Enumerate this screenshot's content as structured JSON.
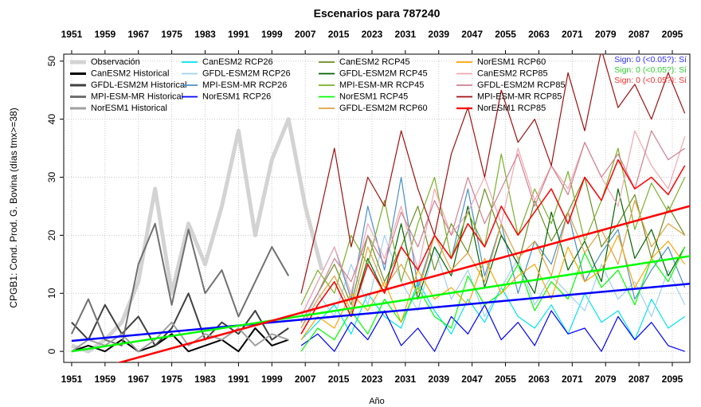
{
  "chart_data": {
    "type": "line",
    "title": "Escenarios  para 787240",
    "x_label": "Año",
    "y_label": "CPGB1: Cond. Prod. G. Bovina (días tmx>=38)",
    "xlim": [
      1949.1,
      2099.2
    ],
    "ylim": [
      -1.9,
      51.2
    ],
    "xticks": [
      1951,
      1959,
      1967,
      1975,
      1983,
      1991,
      1999,
      2007,
      2015,
      2023,
      2031,
      2039,
      2047,
      2055,
      2063,
      2071,
      2079,
      2087,
      2095
    ],
    "yticks": [
      0,
      10,
      20,
      30,
      40,
      50
    ],
    "grid": true,
    "annotations": [
      {
        "text": "Sign: 0  (<0.05?): Sí",
        "color": "#3030ff"
      },
      {
        "text": "Sign: 0  (<0.05?): Sí",
        "color": "#30d030"
      },
      {
        "text": "Sign: 0  (<0.05?): Sí",
        "color": "#ff3030"
      }
    ],
    "series": [
      {
        "name": "Observación",
        "color": "#d3d3d3",
        "width": 5,
        "x": [
          1951,
          1955,
          1959,
          1963,
          1967,
          1971,
          1975,
          1979,
          1983,
          1987,
          1991,
          1995,
          1999,
          2003,
          2007,
          2011
        ],
        "values": [
          1,
          0,
          2,
          5,
          12,
          28,
          10,
          22,
          15,
          25,
          38,
          20,
          33,
          40,
          25,
          14
        ]
      },
      {
        "name": "CanESM2 Historical",
        "color": "#000000",
        "width": 2,
        "x": [
          1951,
          1955,
          1959,
          1963,
          1967,
          1971,
          1975,
          1979,
          1983,
          1987,
          1991,
          1995,
          1999,
          2003
        ],
        "values": [
          0,
          1,
          0,
          2,
          0,
          1,
          3,
          0,
          1,
          2,
          0,
          4,
          1,
          2
        ]
      },
      {
        "name": "GFDL-ESM2M Historical",
        "color": "#404040",
        "width": 2,
        "x": [
          1951,
          1955,
          1959,
          1963,
          1967,
          1971,
          1975,
          1979,
          1983,
          1987,
          1991,
          1995,
          1999,
          2003
        ],
        "values": [
          5,
          2,
          8,
          3,
          6,
          1,
          4,
          10,
          2,
          5,
          3,
          7,
          2,
          4
        ]
      },
      {
        "name": "MPI-ESM-MR Historical",
        "color": "#707070",
        "width": 2,
        "x": [
          1951,
          1955,
          1959,
          1963,
          1967,
          1971,
          1975,
          1979,
          1983,
          1987,
          1991,
          1995,
          1999,
          2003
        ],
        "values": [
          3,
          9,
          2,
          1,
          15,
          22,
          8,
          21,
          10,
          14,
          6,
          12,
          18,
          13
        ]
      },
      {
        "name": "NorESM1 Historical",
        "color": "#a0a0a0",
        "width": 2,
        "x": [
          1951,
          1955,
          1959,
          1963,
          1967,
          1971,
          1975,
          1979,
          1983,
          1987,
          1991,
          1995,
          1999,
          2003
        ],
        "values": [
          0,
          2,
          1,
          3,
          0,
          2,
          5,
          1,
          3,
          2,
          4,
          1,
          3,
          2
        ]
      },
      {
        "name": "CanESM2 RCP26",
        "color": "#00e5ee",
        "width": 1.2,
        "x": [
          2006,
          2010,
          2014,
          2018,
          2022,
          2026,
          2030,
          2034,
          2038,
          2042,
          2046,
          2050,
          2054,
          2058,
          2062,
          2066,
          2070,
          2074,
          2078,
          2082,
          2086,
          2090,
          2094,
          2098
        ],
        "values": [
          2,
          5,
          8,
          3,
          10,
          6,
          4,
          12,
          7,
          3,
          9,
          5,
          11,
          6,
          4,
          8,
          3,
          10,
          5,
          7,
          2,
          9,
          4,
          6
        ]
      },
      {
        "name": "GFDL-ESM2M RCP26",
        "color": "#9fd0f0",
        "width": 1.2,
        "x": [
          2006,
          2010,
          2014,
          2018,
          2022,
          2026,
          2030,
          2034,
          2038,
          2042,
          2046,
          2050,
          2054,
          2058,
          2062,
          2066,
          2070,
          2074,
          2078,
          2082,
          2086,
          2090,
          2094,
          2098
        ],
        "values": [
          4,
          10,
          6,
          15,
          8,
          20,
          12,
          7,
          18,
          9,
          14,
          6,
          11,
          16,
          8,
          13,
          10,
          7,
          15,
          9,
          12,
          6,
          14,
          8
        ]
      },
      {
        "name": "MPI-ESM-MR RCP26",
        "color": "#4a90c8",
        "width": 1.2,
        "x": [
          2006,
          2010,
          2014,
          2018,
          2022,
          2026,
          2030,
          2034,
          2038,
          2042,
          2046,
          2050,
          2054,
          2058,
          2062,
          2066,
          2070,
          2074,
          2078,
          2082,
          2086,
          2090,
          2094,
          2098
        ],
        "values": [
          6,
          12,
          18,
          9,
          25,
          14,
          30,
          11,
          20,
          16,
          28,
          13,
          22,
          10,
          19,
          15,
          24,
          12,
          17,
          21,
          9,
          14,
          18,
          11
        ]
      },
      {
        "name": "NorESM1 RCP26",
        "color": "#0000ff",
        "width": 1.2,
        "x": [
          2006,
          2010,
          2014,
          2018,
          2022,
          2026,
          2030,
          2034,
          2038,
          2042,
          2046,
          2050,
          2054,
          2058,
          2062,
          2066,
          2070,
          2074,
          2078,
          2082,
          2086,
          2090,
          2094,
          2098
        ],
        "values": [
          1,
          3,
          0,
          5,
          2,
          7,
          1,
          4,
          0,
          6,
          3,
          8,
          2,
          5,
          1,
          7,
          3,
          4,
          0,
          6,
          2,
          5,
          1,
          0
        ]
      },
      {
        "name": "CanESM2 RCP45",
        "color": "#6b8e23",
        "width": 1.2,
        "x": [
          2006,
          2010,
          2014,
          2018,
          2022,
          2026,
          2030,
          2034,
          2038,
          2042,
          2046,
          2050,
          2054,
          2058,
          2062,
          2066,
          2070,
          2074,
          2078,
          2082,
          2086,
          2090,
          2094,
          2098
        ],
        "values": [
          5,
          10,
          15,
          8,
          20,
          12,
          18,
          25,
          14,
          22,
          17,
          28,
          20,
          15,
          26,
          19,
          24,
          30,
          18,
          22,
          27,
          16,
          25,
          20
        ]
      },
      {
        "name": "GFDL-ESM2M RCP45",
        "color": "#006400",
        "width": 1.2,
        "x": [
          2006,
          2010,
          2014,
          2018,
          2022,
          2026,
          2030,
          2034,
          2038,
          2042,
          2046,
          2050,
          2054,
          2058,
          2062,
          2066,
          2070,
          2074,
          2078,
          2082,
          2086,
          2090,
          2094,
          2098
        ],
        "values": [
          3,
          8,
          12,
          6,
          16,
          10,
          22,
          9,
          18,
          13,
          25,
          11,
          20,
          15,
          10,
          24,
          14,
          19,
          12,
          28,
          16,
          21,
          13,
          18
        ]
      },
      {
        "name": "MPI-ESM-MR RCP45",
        "color": "#7ab02a",
        "width": 1.2,
        "x": [
          2006,
          2010,
          2014,
          2018,
          2022,
          2026,
          2030,
          2034,
          2038,
          2042,
          2046,
          2050,
          2054,
          2058,
          2062,
          2066,
          2070,
          2074,
          2078,
          2082,
          2086,
          2090,
          2094,
          2098
        ],
        "values": [
          8,
          14,
          10,
          20,
          15,
          26,
          12,
          22,
          30,
          16,
          24,
          18,
          34,
          20,
          28,
          22,
          31,
          19,
          26,
          35,
          21,
          29,
          24,
          30
        ]
      },
      {
        "name": "NorESM1 RCP45",
        "color": "#00ff00",
        "width": 1.2,
        "x": [
          2006,
          2010,
          2014,
          2018,
          2022,
          2026,
          2030,
          2034,
          2038,
          2042,
          2046,
          2050,
          2054,
          2058,
          2062,
          2066,
          2070,
          2074,
          2078,
          2082,
          2086,
          2090,
          2094,
          2098
        ],
        "values": [
          0,
          4,
          2,
          7,
          3,
          9,
          5,
          11,
          6,
          4,
          13,
          8,
          10,
          15,
          7,
          12,
          9,
          17,
          11,
          14,
          8,
          16,
          12,
          18
        ]
      },
      {
        "name": "GFDL-ESM2M RCP60",
        "color": "#e0a040",
        "width": 1.2,
        "x": [
          2006,
          2010,
          2014,
          2018,
          2022,
          2026,
          2030,
          2034,
          2038,
          2042,
          2046,
          2050,
          2054,
          2058,
          2062,
          2066,
          2070,
          2074,
          2078,
          2082,
          2086,
          2090,
          2094,
          2098
        ],
        "values": [
          4,
          9,
          13,
          7,
          18,
          11,
          15,
          10,
          20,
          14,
          17,
          12,
          22,
          16,
          19,
          13,
          24,
          17,
          21,
          15,
          26,
          18,
          22,
          20
        ]
      },
      {
        "name": "NorESM1 RCP60",
        "color": "#ffa500",
        "width": 1.2,
        "x": [
          2006,
          2010,
          2014,
          2018,
          2022,
          2026,
          2030,
          2034,
          2038,
          2042,
          2046,
          2050,
          2054,
          2058,
          2062,
          2066,
          2070,
          2074,
          2078,
          2082,
          2086,
          2090,
          2094,
          2098
        ],
        "values": [
          2,
          6,
          4,
          10,
          7,
          12,
          5,
          14,
          9,
          11,
          8,
          16,
          10,
          13,
          15,
          9,
          18,
          12,
          14,
          20,
          11,
          16,
          19,
          15
        ]
      },
      {
        "name": "CanESM2 RCP85",
        "color": "#f4a6b0",
        "width": 1.2,
        "x": [
          2006,
          2010,
          2014,
          2018,
          2022,
          2026,
          2030,
          2034,
          2038,
          2042,
          2046,
          2050,
          2054,
          2058,
          2062,
          2066,
          2070,
          2074,
          2078,
          2082,
          2086,
          2090,
          2094,
          2098
        ],
        "values": [
          6,
          12,
          18,
          10,
          22,
          16,
          25,
          14,
          28,
          20,
          24,
          30,
          22,
          35,
          26,
          32,
          28,
          36,
          30,
          25,
          38,
          32,
          28,
          37
        ]
      },
      {
        "name": "GFDL-ESM2M RCP85",
        "color": "#d08090",
        "width": 1.2,
        "x": [
          2006,
          2010,
          2014,
          2018,
          2022,
          2026,
          2030,
          2034,
          2038,
          2042,
          2046,
          2050,
          2054,
          2058,
          2062,
          2066,
          2070,
          2074,
          2078,
          2082,
          2086,
          2090,
          2094,
          2098
        ],
        "values": [
          5,
          10,
          16,
          12,
          20,
          15,
          24,
          18,
          26,
          20,
          30,
          22,
          28,
          34,
          25,
          32,
          27,
          36,
          30,
          34,
          28,
          38,
          33,
          35
        ]
      },
      {
        "name": "MPI-ESM-MR RCP85",
        "color": "#a01010",
        "width": 1.2,
        "x": [
          2006,
          2010,
          2014,
          2018,
          2022,
          2026,
          2030,
          2034,
          2038,
          2042,
          2046,
          2050,
          2054,
          2058,
          2062,
          2066,
          2070,
          2074,
          2078,
          2082,
          2086,
          2090,
          2094,
          2098
        ],
        "values": [
          10,
          22,
          35,
          18,
          30,
          25,
          38,
          28,
          20,
          34,
          42,
          30,
          45,
          36,
          40,
          32,
          48,
          38,
          52,
          42,
          46,
          40,
          48,
          41
        ]
      },
      {
        "name": "NorESM1 RCP85",
        "color": "#ff0000",
        "width": 1.5,
        "x": [
          2006,
          2010,
          2014,
          2018,
          2022,
          2026,
          2030,
          2034,
          2038,
          2042,
          2046,
          2050,
          2054,
          2058,
          2062,
          2066,
          2070,
          2074,
          2078,
          2082,
          2086,
          2090,
          2094,
          2098
        ],
        "values": [
          3,
          8,
          12,
          6,
          15,
          10,
          18,
          14,
          20,
          16,
          22,
          18,
          25,
          20,
          24,
          28,
          22,
          30,
          26,
          33,
          28,
          30,
          27,
          32
        ]
      }
    ],
    "trends": [
      {
        "color": "#0000ff",
        "x": [
          1951,
          2100
        ],
        "values": [
          1.8,
          11.7
        ]
      },
      {
        "color": "#00ff00",
        "x": [
          1951,
          2100
        ],
        "values": [
          0,
          16.5
        ]
      },
      {
        "color": "#ff0000",
        "x": [
          1951,
          2100
        ],
        "values": [
          -4.2,
          25.2
        ]
      }
    ]
  }
}
